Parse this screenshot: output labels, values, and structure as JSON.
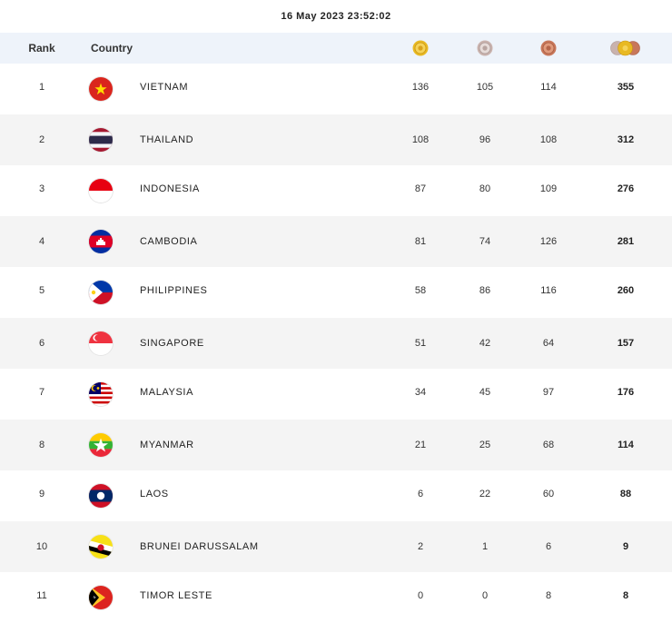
{
  "timestamp": "16 May 2023  23:52:02",
  "header": {
    "rank": "Rank",
    "country": "Country",
    "medal_icons": [
      "gold-medal-icon",
      "silver-medal-icon",
      "bronze-medal-icon",
      "total-medals-icon"
    ]
  },
  "colors": {
    "header_bg": "#eef3fa",
    "alt_row_bg": "#f4f4f4",
    "gold": "#e8b923",
    "silver": "#c9b2ad",
    "bronze": "#c8775a"
  },
  "rows": [
    {
      "rank": "1",
      "country": "VIETNAM",
      "gold": "136",
      "silver": "105",
      "bronze": "114",
      "total": "355",
      "flag": "vietnam-flag-icon"
    },
    {
      "rank": "2",
      "country": "THAILAND",
      "gold": "108",
      "silver": "96",
      "bronze": "108",
      "total": "312",
      "flag": "thailand-flag-icon"
    },
    {
      "rank": "3",
      "country": "INDONESIA",
      "gold": "87",
      "silver": "80",
      "bronze": "109",
      "total": "276",
      "flag": "indonesia-flag-icon"
    },
    {
      "rank": "4",
      "country": "CAMBODIA",
      "gold": "81",
      "silver": "74",
      "bronze": "126",
      "total": "281",
      "flag": "cambodia-flag-icon"
    },
    {
      "rank": "5",
      "country": "PHILIPPINES",
      "gold": "58",
      "silver": "86",
      "bronze": "116",
      "total": "260",
      "flag": "philippines-flag-icon"
    },
    {
      "rank": "6",
      "country": "SINGAPORE",
      "gold": "51",
      "silver": "42",
      "bronze": "64",
      "total": "157",
      "flag": "singapore-flag-icon"
    },
    {
      "rank": "7",
      "country": "MALAYSIA",
      "gold": "34",
      "silver": "45",
      "bronze": "97",
      "total": "176",
      "flag": "malaysia-flag-icon"
    },
    {
      "rank": "8",
      "country": "MYANMAR",
      "gold": "21",
      "silver": "25",
      "bronze": "68",
      "total": "114",
      "flag": "myanmar-flag-icon"
    },
    {
      "rank": "9",
      "country": "LAOS",
      "gold": "6",
      "silver": "22",
      "bronze": "60",
      "total": "88",
      "flag": "laos-flag-icon"
    },
    {
      "rank": "10",
      "country": "BRUNEI DARUSSALAM",
      "gold": "2",
      "silver": "1",
      "bronze": "6",
      "total": "9",
      "flag": "brunei-flag-icon"
    },
    {
      "rank": "11",
      "country": "TIMOR LESTE",
      "gold": "0",
      "silver": "0",
      "bronze": "8",
      "total": "8",
      "flag": "timor-leste-flag-icon"
    }
  ]
}
